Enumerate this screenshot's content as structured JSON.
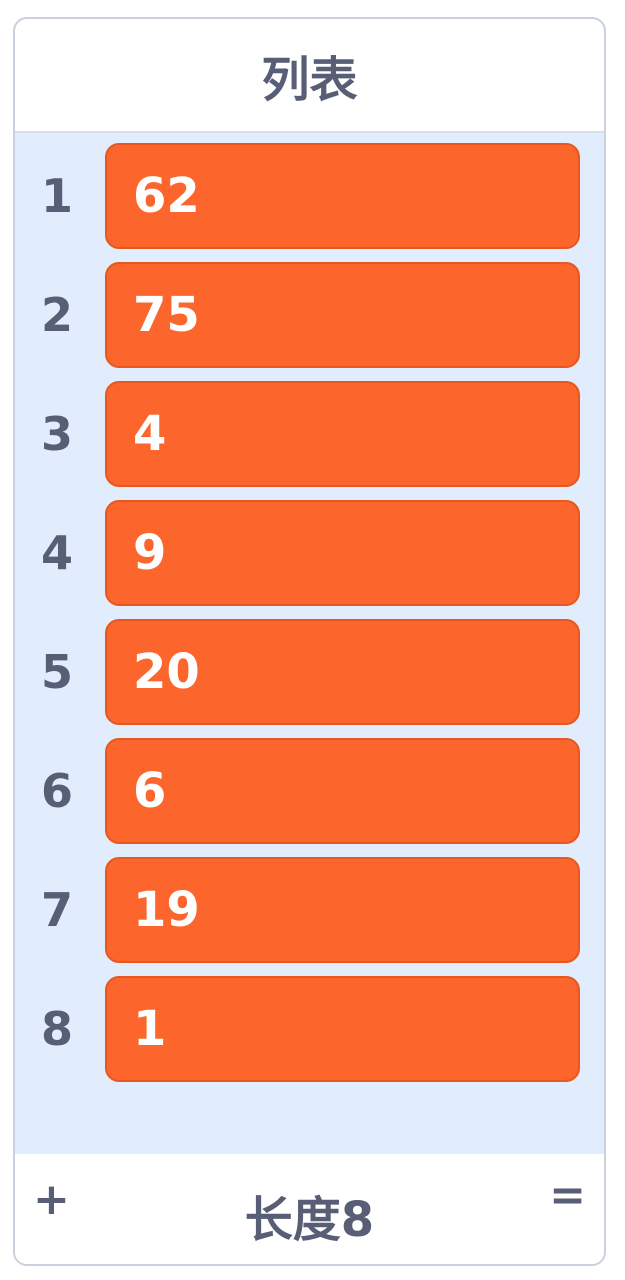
{
  "title": "列表",
  "items": [
    {
      "index": "1",
      "value": "62"
    },
    {
      "index": "2",
      "value": "75"
    },
    {
      "index": "3",
      "value": "4"
    },
    {
      "index": "4",
      "value": "9"
    },
    {
      "index": "5",
      "value": "20"
    },
    {
      "index": "6",
      "value": "6"
    },
    {
      "index": "7",
      "value": "19"
    },
    {
      "index": "8",
      "value": "1"
    }
  ],
  "footer": {
    "add_label": "+",
    "length_label": "长度8",
    "resize_label": "="
  },
  "colors": {
    "item": "#fc652b",
    "list_bg": "#e1edfc",
    "text": "#575e75"
  }
}
